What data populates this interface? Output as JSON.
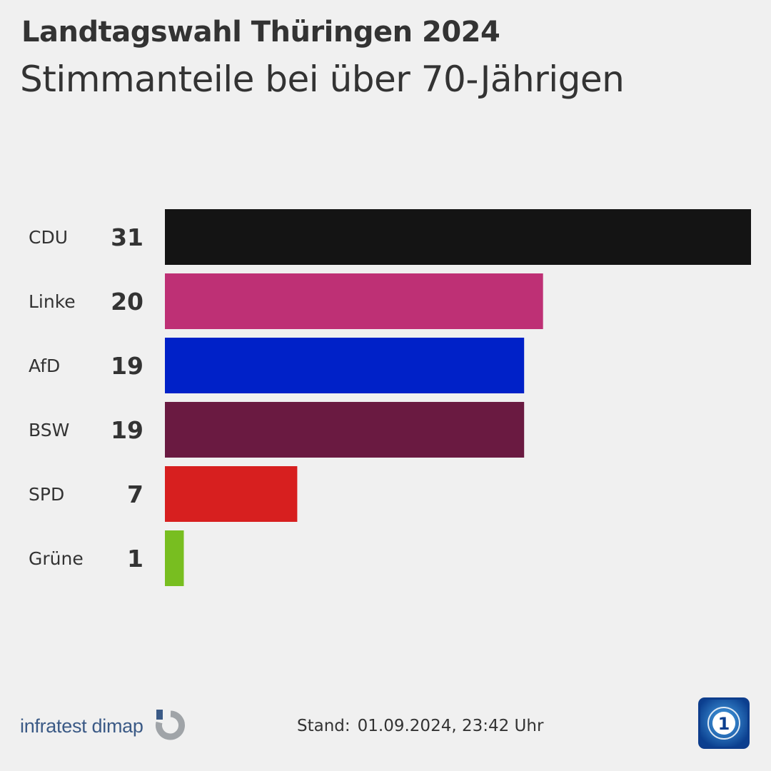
{
  "header": {
    "title": "Landtagswahl Thüringen 2024",
    "subtitle": "Stimmanteile bei über 70-Jährigen"
  },
  "chart_data": {
    "type": "bar",
    "orientation": "horizontal",
    "title": "Landtagswahl Thüringen 2024",
    "subtitle": "Stimmanteile bei über 70-Jährigen",
    "categories": [
      "CDU",
      "Linke",
      "AfD",
      "BSW",
      "SPD",
      "Grüne"
    ],
    "values": [
      31,
      20,
      19,
      19,
      7,
      1
    ],
    "colors": [
      "#141414",
      "#be3075",
      "#0021c8",
      "#6a1a41",
      "#d71f1f",
      "#78be20"
    ],
    "xlim": [
      0,
      31
    ],
    "grid": false,
    "value_labels": true
  },
  "footer": {
    "source_logo_text": "infratest dimap",
    "stand_label": "Stand:",
    "stand_value": "01.09.2024, 23:42 Uhr",
    "broadcaster_logo_icon": "ard-logo-icon",
    "broadcaster_logo_text": "1"
  }
}
